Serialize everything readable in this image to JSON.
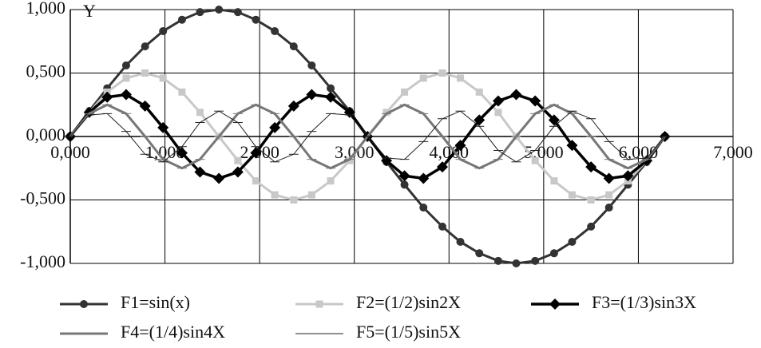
{
  "chart_data": {
    "type": "line",
    "y_label": "Y",
    "x": [
      0,
      0.2,
      0.39,
      0.59,
      0.79,
      0.98,
      1.18,
      1.37,
      1.57,
      1.77,
      1.96,
      2.16,
      2.36,
      2.55,
      2.75,
      2.95,
      3.14,
      3.34,
      3.53,
      3.73,
      3.93,
      4.12,
      4.32,
      4.52,
      4.71,
      4.91,
      5.11,
      5.3,
      5.5,
      5.69,
      5.89,
      6.09,
      6.28
    ],
    "series": [
      {
        "name": "F1=sin(x)",
        "color": "#333333",
        "marker": "circle",
        "width": 3,
        "values": [
          0,
          0.2,
          0.38,
          0.56,
          0.71,
          0.83,
          0.92,
          0.98,
          1,
          0.98,
          0.92,
          0.83,
          0.71,
          0.56,
          0.38,
          0.2,
          0,
          -0.2,
          -0.38,
          -0.56,
          -0.71,
          -0.83,
          -0.92,
          -0.98,
          -1,
          -0.98,
          -0.92,
          -0.83,
          -0.71,
          -0.56,
          -0.38,
          -0.2,
          0
        ]
      },
      {
        "name": "F2=(1/2)sin2X",
        "color": "#c8c8c8",
        "marker": "square",
        "width": 3,
        "values": [
          0,
          0.19,
          0.35,
          0.46,
          0.5,
          0.46,
          0.35,
          0.19,
          0,
          -0.19,
          -0.35,
          -0.46,
          -0.5,
          -0.46,
          -0.35,
          -0.19,
          0,
          0.19,
          0.35,
          0.46,
          0.5,
          0.46,
          0.35,
          0.19,
          0,
          -0.19,
          -0.35,
          -0.46,
          -0.5,
          -0.46,
          -0.35,
          -0.19,
          0
        ]
      },
      {
        "name": "F3=(1/3)sin3X",
        "color": "#000000",
        "marker": "diamond",
        "width": 3.5,
        "values": [
          0,
          0.19,
          0.31,
          0.33,
          0.24,
          0.07,
          -0.13,
          -0.28,
          -0.33,
          -0.28,
          -0.13,
          0.07,
          0.24,
          0.33,
          0.31,
          0.19,
          0,
          -0.19,
          -0.31,
          -0.33,
          -0.24,
          -0.07,
          0.13,
          0.28,
          0.33,
          0.28,
          0.13,
          -0.07,
          -0.24,
          -0.33,
          -0.31,
          -0.19,
          0
        ]
      },
      {
        "name": "F4=(1/4)sin4X",
        "color": "#777777",
        "marker": "dash",
        "width": 3,
        "values": [
          0,
          0.18,
          0.25,
          0.18,
          0,
          -0.18,
          -0.25,
          -0.18,
          0,
          0.18,
          0.25,
          0.18,
          0,
          -0.18,
          -0.25,
          -0.18,
          0,
          0.18,
          0.25,
          0.18,
          0,
          -0.18,
          -0.25,
          -0.18,
          0,
          0.18,
          0.25,
          0.18,
          0,
          -0.18,
          -0.25,
          -0.18,
          0
        ]
      },
      {
        "name": "F5=(1/5)sin5X",
        "color": "#222222",
        "marker": "dash",
        "width": 1,
        "values": [
          0,
          0.17,
          0.18,
          0.04,
          -0.14,
          -0.2,
          -0.08,
          0.11,
          0.2,
          0.11,
          -0.08,
          -0.2,
          -0.14,
          0.04,
          0.18,
          0.17,
          0,
          -0.17,
          -0.18,
          -0.04,
          0.14,
          0.2,
          0.08,
          -0.11,
          -0.2,
          -0.11,
          0.08,
          0.2,
          0.14,
          -0.04,
          -0.18,
          -0.17,
          0
        ]
      }
    ],
    "xlim": [
      0,
      7
    ],
    "xticks": [
      {
        "value": 0,
        "label": "0,000"
      },
      {
        "value": 1,
        "label": "1,000"
      },
      {
        "value": 2,
        "label": "2,000"
      },
      {
        "value": 3,
        "label": "3,000"
      },
      {
        "value": 4,
        "label": "4,000"
      },
      {
        "value": 5,
        "label": "5,000"
      },
      {
        "value": 6,
        "label": "6,000"
      },
      {
        "value": 7,
        "label": "7,000"
      }
    ],
    "ylim": [
      -1,
      1
    ],
    "yticks": [
      {
        "value": -1,
        "label": "-1,000"
      },
      {
        "value": -0.5,
        "label": "-0,500"
      },
      {
        "value": 0,
        "label": "0,000"
      },
      {
        "value": 0.5,
        "label": "0,500"
      },
      {
        "value": 1,
        "label": "1,000"
      }
    ],
    "grid": true,
    "legend": "bottom"
  }
}
